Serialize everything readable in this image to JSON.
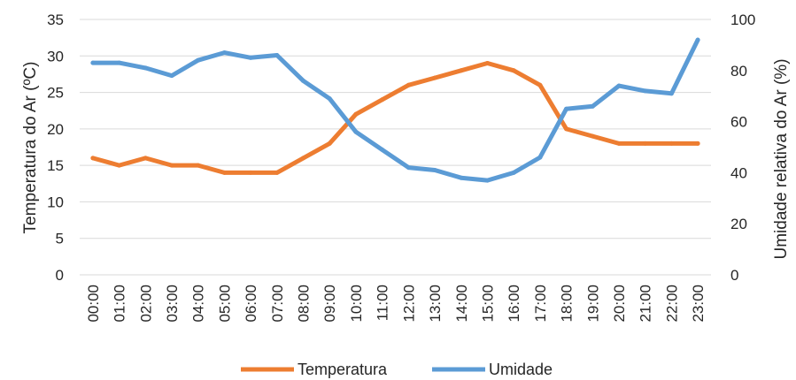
{
  "chart_data": {
    "type": "line",
    "categories": [
      "00:00",
      "01:00",
      "02:00",
      "03:00",
      "04:00",
      "05:00",
      "06:00",
      "07:00",
      "08:00",
      "09:00",
      "10:00",
      "11:00",
      "12:00",
      "13:00",
      "14:00",
      "15:00",
      "16:00",
      "17:00",
      "18:00",
      "19:00",
      "20:00",
      "21:00",
      "22:00",
      "23:00"
    ],
    "series": [
      {
        "name": "Temperatura",
        "axis": "left",
        "color": "#ED7D31",
        "values": [
          16,
          15,
          16,
          15,
          15,
          14,
          14,
          14,
          16,
          18,
          22,
          24,
          26,
          27,
          28,
          29,
          28,
          26,
          20,
          19,
          18,
          18,
          18,
          18
        ]
      },
      {
        "name": "Umidade",
        "axis": "right",
        "color": "#5B9BD5",
        "values": [
          83,
          83,
          81,
          78,
          84,
          87,
          85,
          86,
          76,
          69,
          56,
          49,
          42,
          41,
          38,
          37,
          40,
          46,
          65,
          66,
          74,
          72,
          71,
          92
        ]
      }
    ],
    "ylabel": "Temperatura do Ar (ºC)",
    "ylabel_right": "Umidade relativa do Ar (%)",
    "ylim": [
      0,
      35
    ],
    "yticks": [
      "0",
      "5",
      "10",
      "15",
      "20",
      "25",
      "30",
      "35"
    ],
    "ylim_right": [
      0,
      100
    ],
    "yticks_right": [
      "0",
      "20",
      "40",
      "60",
      "80",
      "100"
    ],
    "grid": true,
    "legend_position": "bottom"
  }
}
